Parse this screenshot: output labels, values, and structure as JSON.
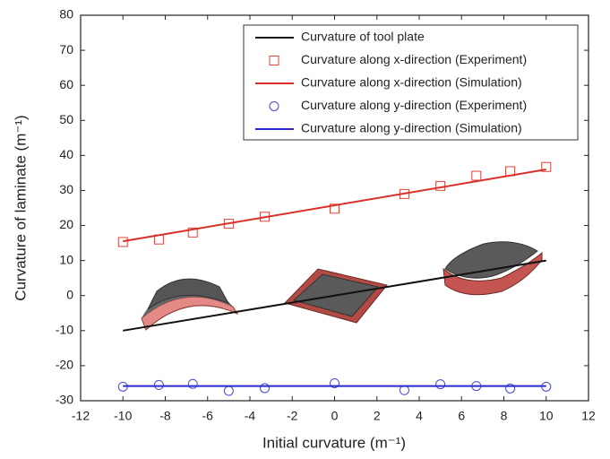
{
  "chart_data": {
    "type": "line",
    "x_label": "Initial curvature (m⁻¹)",
    "y_label": "Curvature of laminate (m⁻¹)",
    "xlim": [
      -12,
      12
    ],
    "ylim": [
      -30,
      80
    ],
    "xticks": [
      -12,
      -10,
      -8,
      -6,
      -4,
      -2,
      0,
      2,
      4,
      6,
      8,
      10,
      12
    ],
    "yticks": [
      -30,
      -20,
      -10,
      0,
      10,
      20,
      30,
      40,
      50,
      60,
      70,
      80
    ],
    "series": [
      {
        "name": "Curvature of tool plate",
        "color": "#111111",
        "style": "line",
        "x": [
          -10,
          10
        ],
        "values": [
          -10,
          10
        ]
      },
      {
        "name": "Curvature along x-direction (Experiment)",
        "color": "#e0453a",
        "style": "square",
        "x": [
          -10,
          -8.3,
          -6.7,
          -5,
          -3.3,
          0,
          3.3,
          5,
          6.7,
          8.3,
          10
        ],
        "values": [
          15.3,
          16,
          18,
          20.5,
          22.5,
          24.8,
          29,
          31.3,
          34.2,
          35.5,
          36.7
        ]
      },
      {
        "name": "Curvature along x-direction (Simulation)",
        "color": "#d9302a",
        "style": "line",
        "x": [
          -10,
          10
        ],
        "values": [
          15.5,
          36
        ]
      },
      {
        "name": "Curvature along y-direction (Experiment)",
        "color": "#4a4ac8",
        "style": "circle",
        "x": [
          -10,
          -8.3,
          -6.7,
          -5,
          -3.3,
          0,
          3.3,
          5,
          6.7,
          8.3,
          10
        ],
        "values": [
          -26,
          -25.5,
          -25.2,
          -27.2,
          -26.4,
          -25,
          -27,
          -25.3,
          -25.8,
          -26.5,
          -26
        ]
      },
      {
        "name": "Curvature along y-direction (Simulation)",
        "color": "#2a2ad0",
        "style": "line",
        "x": [
          -10,
          10
        ],
        "values": [
          -25.8,
          -25.8
        ]
      }
    ]
  }
}
